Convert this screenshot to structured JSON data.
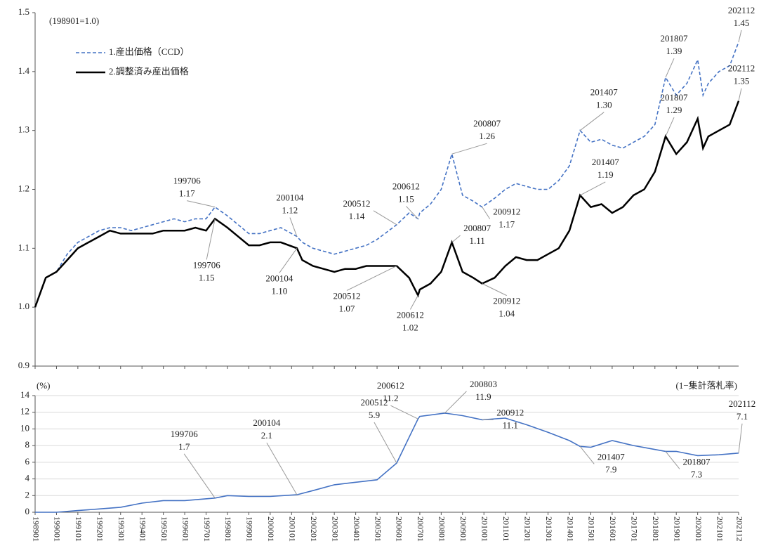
{
  "chart_data": [
    {
      "type": "line",
      "note": "(198901=1.0)",
      "legend": "upper left",
      "x": [
        "198901",
        "198907",
        "199001",
        "199007",
        "199101",
        "199107",
        "199201",
        "199207",
        "199301",
        "199307",
        "199401",
        "199407",
        "199501",
        "199507",
        "199601",
        "199607",
        "199701",
        "199706",
        "199801",
        "199807",
        "199901",
        "199907",
        "200001",
        "200007",
        "200104",
        "200107",
        "200201",
        "200207",
        "200301",
        "200307",
        "200401",
        "200407",
        "200501",
        "200512",
        "200607",
        "200612",
        "200701",
        "200707",
        "200801",
        "200807",
        "200901",
        "200907",
        "200912",
        "201007",
        "201101",
        "201107",
        "201201",
        "201207",
        "201301",
        "201307",
        "201401",
        "201407",
        "201501",
        "201507",
        "201601",
        "201607",
        "201701",
        "201707",
        "201801",
        "201807",
        "201901",
        "201907",
        "202001",
        "202004",
        "202007",
        "202101",
        "202107",
        "202112"
      ],
      "xlim": [
        "198901",
        "202112"
      ],
      "ylim": [
        0.9,
        1.5
      ],
      "yticks": [
        0.9,
        {
          "value": 1,
          "label": "1.0"
        },
        1.1,
        1.2,
        1.3,
        1.4,
        1.5
      ],
      "series": [
        {
          "name": "1.産出価格（CCD）",
          "color": "#4472c4",
          "dashed": true,
          "values": [
            1.0,
            1.05,
            1.06,
            1.09,
            1.11,
            1.12,
            1.13,
            1.135,
            1.135,
            1.13,
            1.135,
            1.14,
            1.145,
            1.15,
            1.145,
            1.15,
            1.15,
            1.17,
            1.155,
            1.14,
            1.125,
            1.125,
            1.13,
            1.135,
            1.12,
            1.11,
            1.1,
            1.095,
            1.09,
            1.095,
            1.1,
            1.105,
            1.115,
            1.14,
            1.16,
            1.15,
            1.16,
            1.175,
            1.2,
            1.26,
            1.19,
            1.18,
            1.17,
            1.185,
            1.2,
            1.21,
            1.205,
            1.2,
            1.2,
            1.215,
            1.24,
            1.3,
            1.28,
            1.285,
            1.275,
            1.27,
            1.28,
            1.29,
            1.31,
            1.39,
            1.36,
            1.38,
            1.42,
            1.36,
            1.38,
            1.4,
            1.41,
            1.45
          ],
          "annotations": [
            {
              "x": "199706",
              "label": "1.17"
            },
            {
              "x": "200104",
              "label": "1.12"
            },
            {
              "x": "200512",
              "label": "1.14"
            },
            {
              "x": "200612",
              "label": "1.15"
            },
            {
              "x": "200807",
              "label": "1.26"
            },
            {
              "x": "200912",
              "label": "1.17"
            },
            {
              "x": "201407",
              "label": "1.30"
            },
            {
              "x": "201807",
              "label": "1.39"
            },
            {
              "x": "202112",
              "label": "1.45"
            }
          ]
        },
        {
          "name": "2.調整済み産出価格",
          "color": "#000000",
          "dashed": false,
          "values": [
            1.0,
            1.05,
            1.06,
            1.08,
            1.1,
            1.11,
            1.12,
            1.13,
            1.125,
            1.125,
            1.125,
            1.125,
            1.13,
            1.13,
            1.13,
            1.135,
            1.13,
            1.15,
            1.135,
            1.12,
            1.105,
            1.105,
            1.11,
            1.11,
            1.1,
            1.08,
            1.07,
            1.065,
            1.06,
            1.065,
            1.065,
            1.07,
            1.07,
            1.07,
            1.05,
            1.02,
            1.03,
            1.04,
            1.06,
            1.11,
            1.06,
            1.05,
            1.04,
            1.05,
            1.07,
            1.085,
            1.08,
            1.08,
            1.09,
            1.1,
            1.13,
            1.19,
            1.17,
            1.175,
            1.16,
            1.17,
            1.19,
            1.2,
            1.23,
            1.29,
            1.26,
            1.28,
            1.32,
            1.27,
            1.29,
            1.3,
            1.31,
            1.35
          ],
          "annotations": [
            {
              "x": "199706",
              "label": "1.15"
            },
            {
              "x": "200104",
              "label": "1.10"
            },
            {
              "x": "200512",
              "label": "1.07"
            },
            {
              "x": "200612",
              "label": "1.02"
            },
            {
              "x": "200807",
              "label": "1.11"
            },
            {
              "x": "200912",
              "label": "1.04"
            },
            {
              "x": "201407",
              "label": "1.19"
            },
            {
              "x": "201807",
              "label": "1.29"
            },
            {
              "x": "202112",
              "label": "1.35"
            }
          ]
        }
      ]
    },
    {
      "type": "line",
      "y_label": "(%)",
      "note": "(1−集計落札率)",
      "grid": true,
      "x": [
        "198901",
        "199001",
        "199101",
        "199201",
        "199301",
        "199401",
        "199501",
        "199601",
        "199706",
        "199801",
        "199901",
        "200001",
        "200104",
        "200201",
        "200301",
        "200401",
        "200501",
        "200512",
        "200607",
        "200612",
        "200701",
        "200803",
        "200901",
        "200912",
        "201101",
        "201201",
        "201301",
        "201401",
        "201407",
        "201501",
        "201601",
        "201701",
        "201807",
        "201901",
        "202001",
        "202101",
        "202112"
      ],
      "xlim": [
        "198901",
        "202112"
      ],
      "ylim": [
        0,
        14
      ],
      "yticks": [
        0,
        2,
        4,
        6,
        8,
        10,
        12,
        14
      ],
      "xticks": [
        "198901",
        "199001",
        "199101",
        "199201",
        "199301",
        "199401",
        "199501",
        "199601",
        "199701",
        "199801",
        "199901",
        "200001",
        "200101",
        "200201",
        "200301",
        "200401",
        "200501",
        "200601",
        "200701",
        "200801",
        "200901",
        "201001",
        "201101",
        "201201",
        "201301",
        "201401",
        "201501",
        "201601",
        "201701",
        "201801",
        "201901",
        "202001",
        "202101",
        "202112"
      ],
      "series": [
        {
          "color": "#4472c4",
          "values": [
            0,
            0,
            0.2,
            0.4,
            0.6,
            1.1,
            1.4,
            1.4,
            1.7,
            2.0,
            1.9,
            1.9,
            2.1,
            2.6,
            3.3,
            3.6,
            3.9,
            5.9,
            9.0,
            11.2,
            11.5,
            11.9,
            11.6,
            11.1,
            11.3,
            10.5,
            9.6,
            8.6,
            7.9,
            7.8,
            8.6,
            8.0,
            7.3,
            7.3,
            6.8,
            6.9,
            7.1
          ],
          "annotations": [
            {
              "x": "199706",
              "label": "1.7"
            },
            {
              "x": "200104",
              "label": "2.1"
            },
            {
              "x": "200512",
              "label": "5.9"
            },
            {
              "x": "200612",
              "label": "11.2"
            },
            {
              "x": "200803",
              "label": "11.9"
            },
            {
              "x": "200912",
              "label": "11.1"
            },
            {
              "x": "201407",
              "label": "7.9"
            },
            {
              "x": "201807",
              "label": "7.3"
            },
            {
              "x": "202112",
              "label": "7.1"
            }
          ]
        }
      ]
    }
  ]
}
